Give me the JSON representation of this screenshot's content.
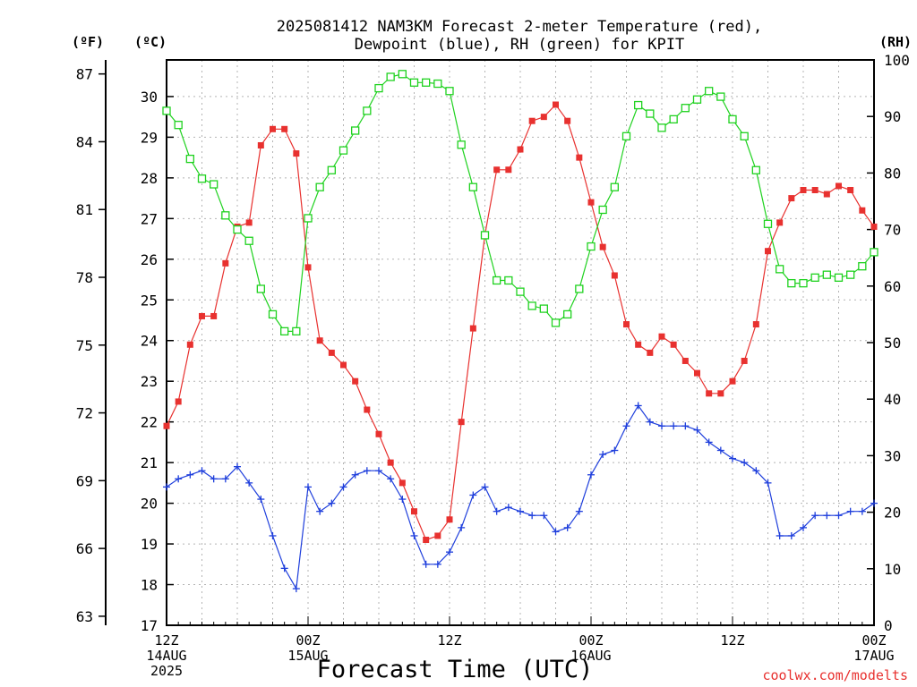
{
  "chart_data": {
    "type": "line",
    "title_line1": "2025081412 NAM3KM Forecast 2-meter Temperature (red),",
    "title_line2": "Dewpoint (blue), RH (green) for KPIT",
    "left_unit_f": "(ºF)",
    "left_unit_c": "(ºC)",
    "right_unit": "(RH)",
    "xlabel": "Forecast Time (UTC)",
    "credit": "coolwx.com/modelts",
    "x_ticks": [
      {
        "hour": 0,
        "label1": "12Z",
        "label2": "14AUG",
        "label3": "2025"
      },
      {
        "hour": 12,
        "label1": "00Z",
        "label2": "15AUG",
        "label3": ""
      },
      {
        "hour": 24,
        "label1": "12Z",
        "label2": "",
        "label3": ""
      },
      {
        "hour": 36,
        "label1": "00Z",
        "label2": "16AUG",
        "label3": ""
      },
      {
        "hour": 48,
        "label1": "12Z",
        "label2": "",
        "label3": ""
      },
      {
        "hour": 60,
        "label1": "00Z",
        "label2": "17AUG",
        "label3": ""
      }
    ],
    "x_range_hours": [
      0,
      60
    ],
    "c_axis": {
      "min": 17,
      "max": 30.9,
      "ticks": [
        17,
        18,
        19,
        20,
        21,
        22,
        23,
        24,
        25,
        26,
        27,
        28,
        29,
        30
      ]
    },
    "f_axis_ticks": [
      63,
      66,
      69,
      72,
      75,
      78,
      81,
      84,
      87
    ],
    "rh_axis": {
      "min": 0,
      "max": 100,
      "ticks": [
        0,
        10,
        20,
        30,
        40,
        50,
        60,
        70,
        80,
        90,
        100
      ]
    },
    "grid": true,
    "colors": {
      "temperature": "#e8312f",
      "dewpoint": "#1f3fdc",
      "rh": "#1fd21f"
    },
    "series": [
      {
        "name": "Temperature",
        "units": "C",
        "values": [
          21.9,
          22.5,
          23.9,
          24.6,
          24.6,
          25.9,
          26.8,
          26.9,
          28.8,
          29.2,
          29.2,
          28.6,
          25.8,
          24.0,
          23.7,
          23.4,
          23.0,
          22.3,
          21.7,
          21.0,
          20.5,
          19.8,
          19.1,
          19.2,
          19.6,
          22.0,
          24.3,
          26.6,
          28.2,
          28.2,
          28.7,
          29.4,
          29.5,
          29.8,
          29.4,
          28.5,
          27.4,
          26.3,
          25.6,
          24.4,
          23.9,
          23.7,
          24.1,
          23.9,
          23.5,
          23.2,
          22.7,
          22.7,
          23.0,
          23.5,
          24.4,
          26.2,
          26.9,
          27.5,
          27.7,
          27.7,
          27.6,
          27.8,
          27.7,
          27.2,
          26.8
        ]
      },
      {
        "name": "Dewpoint",
        "units": "C",
        "values": [
          20.4,
          20.6,
          20.7,
          20.8,
          20.6,
          20.6,
          20.9,
          20.5,
          20.1,
          19.2,
          18.4,
          17.9,
          20.4,
          19.8,
          20.0,
          20.4,
          20.7,
          20.8,
          20.8,
          20.6,
          20.1,
          19.2,
          18.5,
          18.5,
          18.8,
          19.4,
          20.2,
          20.4,
          19.8,
          19.9,
          19.8,
          19.7,
          19.7,
          19.3,
          19.4,
          19.8,
          20.7,
          21.2,
          21.3,
          21.9,
          22.4,
          22.0,
          21.9,
          21.9,
          21.9,
          21.8,
          21.5,
          21.3,
          21.1,
          21.0,
          20.8,
          20.5,
          19.2,
          19.2,
          19.4,
          19.7,
          19.7,
          19.7,
          19.8,
          19.8,
          20.0
        ]
      },
      {
        "name": "RH",
        "units": "%",
        "values": [
          91,
          88.5,
          82.5,
          79,
          78,
          72.5,
          70,
          68,
          59.5,
          55,
          52,
          52,
          72,
          77.5,
          80.5,
          84,
          87.5,
          91,
          95,
          97,
          97.5,
          96,
          96,
          95.8,
          94.5,
          85,
          77.5,
          69,
          61,
          61,
          59,
          56.5,
          56,
          53.5,
          55,
          59.5,
          67,
          73.5,
          77.5,
          86.5,
          92,
          90.5,
          88,
          89.5,
          91.5,
          93,
          94.5,
          93.5,
          89.5,
          86.5,
          80.5,
          71,
          63,
          60.5,
          60.5,
          61.5,
          62,
          61.5,
          62,
          63.5,
          66
        ]
      }
    ]
  }
}
